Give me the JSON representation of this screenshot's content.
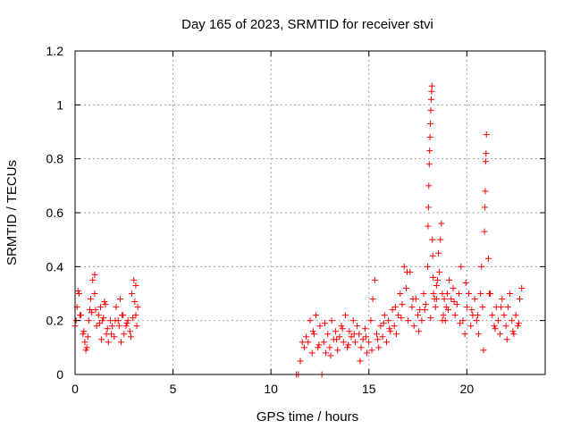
{
  "chart_data": {
    "type": "scatter",
    "title": "Day 165 of 2023, SRMTID for receiver stvi",
    "xlabel": "GPS time / hours",
    "ylabel": "SRMTID / TECUs",
    "xlim": [
      0,
      24
    ],
    "ylim": [
      0,
      1.2
    ],
    "xticks": [
      0,
      5,
      10,
      15,
      20
    ],
    "yticks": [
      0,
      0.2,
      0.4,
      0.6,
      0.8,
      1.0,
      1.2
    ],
    "xtick_labels": [
      "0",
      "5",
      "10",
      "15",
      "20"
    ],
    "ytick_labels": [
      "0",
      "0.2",
      "0.4",
      "0.6",
      "0.8",
      "1",
      "1.2"
    ],
    "grid": true,
    "marker": "+",
    "color": "#ff0000",
    "series": [
      {
        "name": "SRMTID",
        "x": [
          0.0,
          0.1,
          0.2,
          0.3,
          0.4,
          0.5,
          0.6,
          0.7,
          0.8,
          0.9,
          1.0,
          1.1,
          1.2,
          1.3,
          1.4,
          1.5,
          1.6,
          1.7,
          1.8,
          1.9,
          2.0,
          2.1,
          2.2,
          2.3,
          2.4,
          2.5,
          2.6,
          2.7,
          2.8,
          2.9,
          3.0,
          3.1,
          3.2,
          0.05,
          0.25,
          0.45,
          0.65,
          0.85,
          1.05,
          1.25,
          1.45,
          1.65,
          1.85,
          2.05,
          2.25,
          2.45,
          2.65,
          2.85,
          3.05,
          3.15,
          0.15,
          0.55,
          0.75,
          1.0,
          1.35,
          1.55,
          2.35,
          2.95,
          3.1,
          11.3,
          11.4,
          11.7,
          11.8,
          11.9,
          12.0,
          12.1,
          12.2,
          12.3,
          12.4,
          12.5,
          12.6,
          12.7,
          12.8,
          12.9,
          13.0,
          13.1,
          13.2,
          13.3,
          13.4,
          13.5,
          13.6,
          13.7,
          13.8,
          13.9,
          14.0,
          14.1,
          14.2,
          14.3,
          14.4,
          14.5,
          14.6,
          14.7,
          14.8,
          14.9,
          15.0,
          15.1,
          15.2,
          15.3,
          15.4,
          15.5,
          15.6,
          15.7,
          15.8,
          15.9,
          16.0,
          16.1,
          16.2,
          16.3,
          16.4,
          16.5,
          16.6,
          16.7,
          16.8,
          16.9,
          17.0,
          17.1,
          17.2,
          17.3,
          17.4,
          17.5,
          17.6,
          17.7,
          17.8,
          17.9,
          18.0,
          18.02,
          18.04,
          18.06,
          18.08,
          18.1,
          18.12,
          18.14,
          18.16,
          18.18,
          18.2,
          18.22,
          18.24,
          18.26,
          18.28,
          18.3,
          18.35,
          18.4,
          18.45,
          18.5,
          18.55,
          18.6,
          18.65,
          18.7,
          18.75,
          18.8,
          18.85,
          18.9,
          18.95,
          19.0,
          19.1,
          19.2,
          19.3,
          19.4,
          19.5,
          19.6,
          19.7,
          19.8,
          19.9,
          20.0,
          20.1,
          20.2,
          20.3,
          20.4,
          20.5,
          20.6,
          20.7,
          20.75,
          20.8,
          20.85,
          20.9,
          20.92,
          20.94,
          20.96,
          20.98,
          21.0,
          21.1,
          21.2,
          21.3,
          21.4,
          21.5,
          21.6,
          21.7,
          21.8,
          21.9,
          22.0,
          22.1,
          22.2,
          22.3,
          22.4,
          22.5,
          22.6,
          22.7,
          22.8,
          11.5,
          11.6,
          12.15,
          12.45,
          12.75,
          13.05,
          13.35,
          13.65,
          13.95,
          14.25,
          14.55,
          14.85,
          15.15,
          15.45,
          15.75,
          16.05,
          16.35,
          16.65,
          16.95,
          17.25,
          17.55,
          17.85,
          18.15,
          18.45,
          18.75,
          19.05,
          19.35,
          19.65,
          19.95,
          20.25,
          20.55,
          21.15,
          21.45,
          21.75,
          22.05,
          22.35,
          22.65
        ],
        "y": [
          0.18,
          0.25,
          0.3,
          0.22,
          0.15,
          0.12,
          0.1,
          0.2,
          0.28,
          0.35,
          0.3,
          0.18,
          0.22,
          0.25,
          0.2,
          0.27,
          0.15,
          0.12,
          0.2,
          0.18,
          0.14,
          0.25,
          0.2,
          0.28,
          0.22,
          0.15,
          0.18,
          0.2,
          0.16,
          0.3,
          0.35,
          0.22,
          0.25,
          0.2,
          0.22,
          0.16,
          0.14,
          0.23,
          0.24,
          0.19,
          0.21,
          0.17,
          0.15,
          0.2,
          0.18,
          0.22,
          0.19,
          0.14,
          0.27,
          0.18,
          0.31,
          0.09,
          0.24,
          0.37,
          0.13,
          0.26,
          0.12,
          0.21,
          0.33,
          0.0,
          0.0,
          0.1,
          0.14,
          0.12,
          0.2,
          0.08,
          0.15,
          0.22,
          0.1,
          0.18,
          0.0,
          0.12,
          0.08,
          0.15,
          0.1,
          0.2,
          0.13,
          0.16,
          0.09,
          0.14,
          0.18,
          0.12,
          0.22,
          0.1,
          0.16,
          0.14,
          0.2,
          0.12,
          0.18,
          0.15,
          0.1,
          0.13,
          0.17,
          0.08,
          0.12,
          0.2,
          0.28,
          0.35,
          0.15,
          0.1,
          0.18,
          0.14,
          0.22,
          0.12,
          0.2,
          0.16,
          0.24,
          0.18,
          0.15,
          0.22,
          0.3,
          0.26,
          0.4,
          0.32,
          0.2,
          0.38,
          0.25,
          0.18,
          0.28,
          0.22,
          0.24,
          0.2,
          0.3,
          0.26,
          0.4,
          0.55,
          0.62,
          0.7,
          0.78,
          0.83,
          0.88,
          0.93,
          0.98,
          1.02,
          1.05,
          1.07,
          0.5,
          0.44,
          0.36,
          0.3,
          0.28,
          0.25,
          0.33,
          0.35,
          0.45,
          0.38,
          0.5,
          0.56,
          0.3,
          0.22,
          0.28,
          0.2,
          0.25,
          0.3,
          0.35,
          0.28,
          0.32,
          0.22,
          0.26,
          0.3,
          0.4,
          0.2,
          0.15,
          0.25,
          0.3,
          0.18,
          0.22,
          0.28,
          0.2,
          0.15,
          0.3,
          0.4,
          0.25,
          0.09,
          0.53,
          0.62,
          0.68,
          0.79,
          0.82,
          0.89,
          0.43,
          0.3,
          0.22,
          0.18,
          0.25,
          0.2,
          0.15,
          0.28,
          0.22,
          0.18,
          0.25,
          0.3,
          0.2,
          0.15,
          0.22,
          0.18,
          0.28,
          0.32,
          0.05,
          0.12,
          0.16,
          0.11,
          0.19,
          0.07,
          0.13,
          0.17,
          0.11,
          0.15,
          0.05,
          0.14,
          0.09,
          0.13,
          0.19,
          0.17,
          0.25,
          0.21,
          0.38,
          0.28,
          0.16,
          0.24,
          0.21,
          0.28,
          0.2,
          0.24,
          0.27,
          0.19,
          0.34,
          0.24,
          0.22,
          0.3,
          0.17,
          0.25,
          0.13,
          0.16,
          0.19
        ]
      }
    ]
  }
}
